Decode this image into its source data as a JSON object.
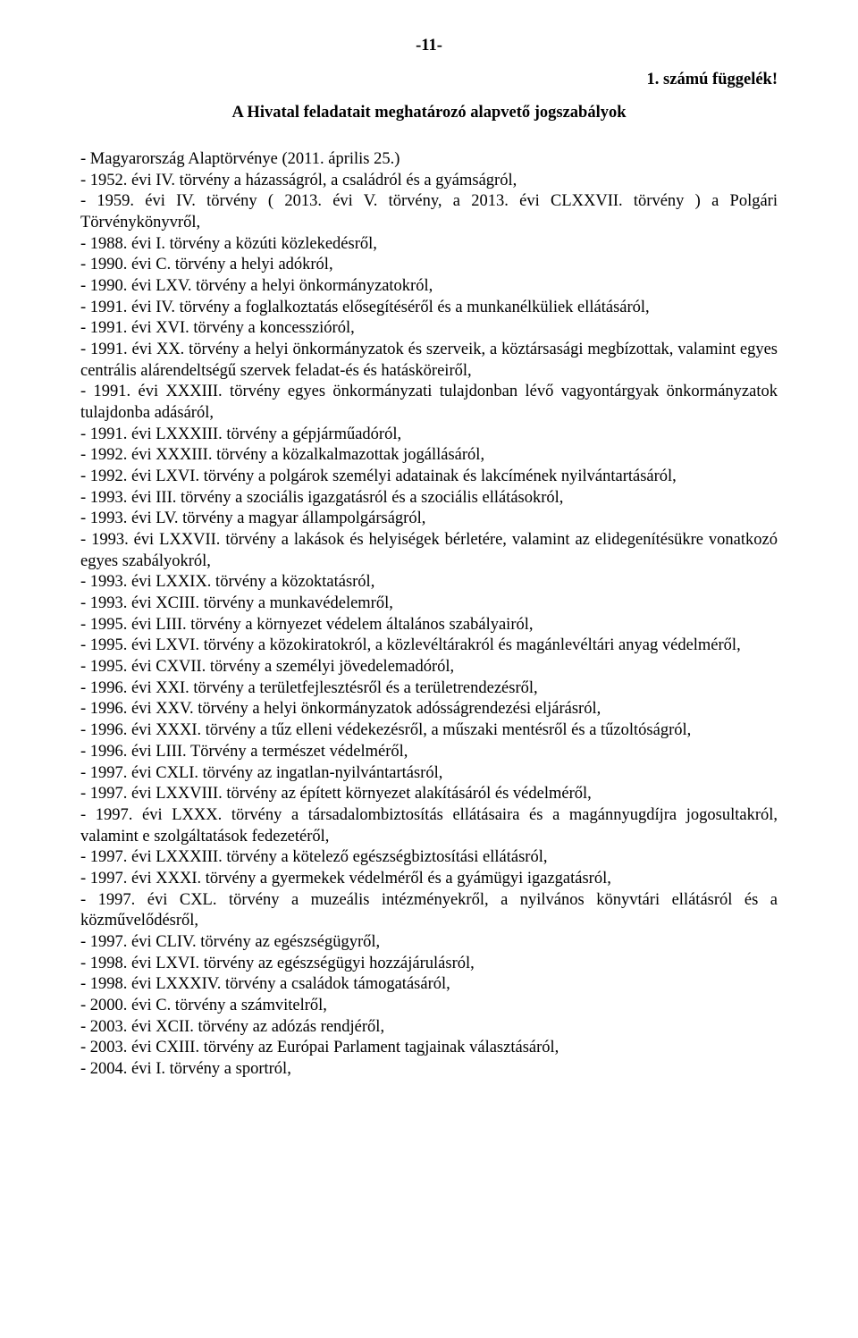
{
  "page_number": "-11-",
  "appendix_label": "1. számú függelék!",
  "heading": "A Hivatal feladatait meghatározó alapvető jogszabályok",
  "laws": [
    "- Magyarország Alaptörvénye (2011. április 25.)",
    "- 1952. évi IV. törvény a házasságról, a családról és a gyámságról,",
    "- 1959. évi IV. törvény ( 2013. évi V. törvény, a 2013. évi CLXXVII. törvény ) a Polgári Törvénykönyvről,",
    "- 1988. évi I. törvény a közúti közlekedésről,",
    "- 1990. évi C. törvény a helyi adókról,",
    "- 1990. évi LXV. törvény a helyi önkormányzatokról,",
    "- 1991. évi IV. törvény a foglalkoztatás elősegítéséről és a munkanélküliek ellátásáról,",
    "- 1991. évi XVI. törvény a koncesszióról,",
    "- 1991. évi XX. törvény a helyi önkormányzatok és szerveik, a köztársasági megbízottak, valamint egyes centrális alárendeltségű szervek feladat-és és hatásköreiről,",
    "- 1991. évi XXXIII. törvény egyes önkormányzati tulajdonban lévő vagyontárgyak önkormányzatok tulajdonba adásáról,",
    "- 1991. évi LXXXIII. törvény a gépjárműadóról,",
    "- 1992. évi XXXIII. törvény a közalkalmazottak jogállásáról,",
    "- 1992. évi LXVI. törvény a polgárok személyi adatainak és lakcímének nyilvántartásáról,",
    "- 1993. évi III. törvény a szociális igazgatásról és a szociális ellátásokról,",
    "- 1993. évi LV. törvény a magyar állampolgárságról,",
    "- 1993. évi LXXVII. törvény a lakások és helyiségek bérletére, valamint az elidegenítésükre vonatkozó egyes szabályokról,",
    "- 1993. évi LXXIX. törvény a közoktatásról,",
    "- 1993. évi XCIII. törvény a munkavédelemről,",
    "- 1995. évi LIII. törvény a környezet védelem általános szabályairól,",
    "- 1995. évi LXVI. törvény a közokiratokról, a közlevéltárakról és magánlevéltári anyag védelméről,",
    "- 1995. évi CXVII. törvény a személyi jövedelemadóról,",
    "- 1996. évi XXI. törvény a területfejlesztésről és a területrendezésről,",
    "- 1996. évi XXV. törvény a helyi önkormányzatok adósságrendezési eljárásról,",
    "- 1996. évi XXXI. törvény a tűz elleni védekezésről, a műszaki mentésről és a tűzoltóságról,",
    "- 1996. évi LIII. Törvény a természet védelméről,",
    "- 1997. évi CXLI. törvény az ingatlan-nyilvántartásról,",
    "- 1997. évi LXXVIII. törvény az épített környezet alakításáról és védelméről,",
    "- 1997. évi LXXX. törvény a társadalombiztosítás ellátásaira és a magánnyugdíjra jogosultakról, valamint e szolgáltatások fedezetéről,",
    "- 1997. évi LXXXIII. törvény a kötelező egészségbiztosítási ellátásról,",
    "- 1997. évi XXXI. törvény a gyermekek védelméről és a gyámügyi igazgatásról,",
    "- 1997. évi CXL. törvény a muzeális intézményekről, a nyilvános könyvtári ellátásról és a közművelődésről,",
    "- 1997. évi CLIV. törvény az egészségügyről,",
    "- 1998. évi LXVI. törvény az egészségügyi hozzájárulásról,",
    "- 1998. évi LXXXIV. törvény a családok támogatásáról,",
    "- 2000. évi C. törvény a számvitelről,",
    "- 2003. évi XCII. törvény az adózás rendjéről,",
    "- 2003. évi CXIII. törvény az Európai Parlament tagjainak választásáról,",
    "- 2004. évi I. törvény a sportról,"
  ]
}
